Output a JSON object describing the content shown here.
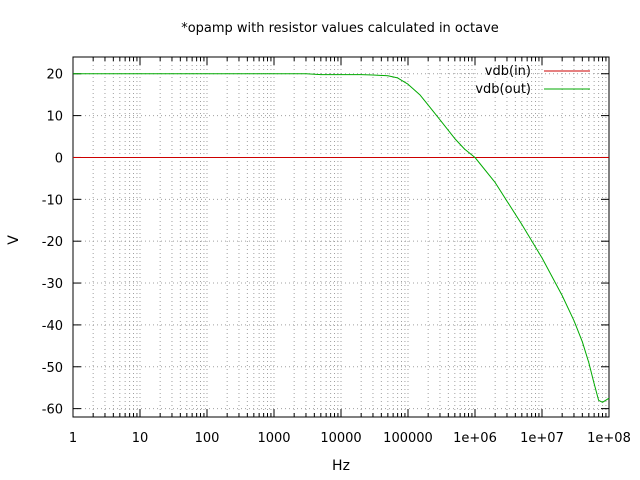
{
  "chart_data": {
    "type": "line",
    "title": "*opamp with resistor values calculated in octave",
    "xlabel": "Hz",
    "ylabel": "V",
    "xscale": "log",
    "xlim": [
      1,
      100000000
    ],
    "ylim": [
      -62,
      24
    ],
    "grid": true,
    "legend_position": "top-right",
    "xticks": [
      1,
      10,
      100,
      1000,
      10000,
      100000,
      1000000,
      10000000,
      100000000
    ],
    "xtick_labels": [
      "1",
      "10",
      "100",
      "1000",
      "10000",
      "100000",
      "1e+06",
      "1e+07",
      "1e+08"
    ],
    "yticks": [
      20,
      10,
      0,
      -10,
      -20,
      -30,
      -40,
      -50,
      -60
    ],
    "ytick_labels": [
      "20",
      "10",
      "0",
      "-10",
      "-20",
      "-30",
      "-40",
      "-50",
      "-60"
    ],
    "series": [
      {
        "name": "vdb(in)",
        "color": "#cc0000",
        "x": [
          1,
          100000000
        ],
        "y": [
          0,
          0
        ]
      },
      {
        "name": "vdb(out)",
        "color": "#00aa00",
        "x": [
          1,
          1000,
          3000,
          5000,
          10000,
          20000,
          30000,
          50000,
          70000,
          100000,
          150000,
          200000,
          300000,
          500000,
          700000,
          1000000,
          2000000,
          5000000,
          10000000,
          20000000,
          30000000,
          40000000,
          50000000,
          60000000,
          70000000,
          80000000,
          100000000
        ],
        "y": [
          20,
          20,
          20,
          19.8,
          19.8,
          19.8,
          19.7,
          19.5,
          19,
          17.5,
          15,
          12.5,
          9,
          4.5,
          2,
          0,
          -6,
          -16,
          -24,
          -33,
          -39,
          -44,
          -49,
          -54,
          -58,
          -58.5,
          -57.5
        ]
      }
    ]
  }
}
